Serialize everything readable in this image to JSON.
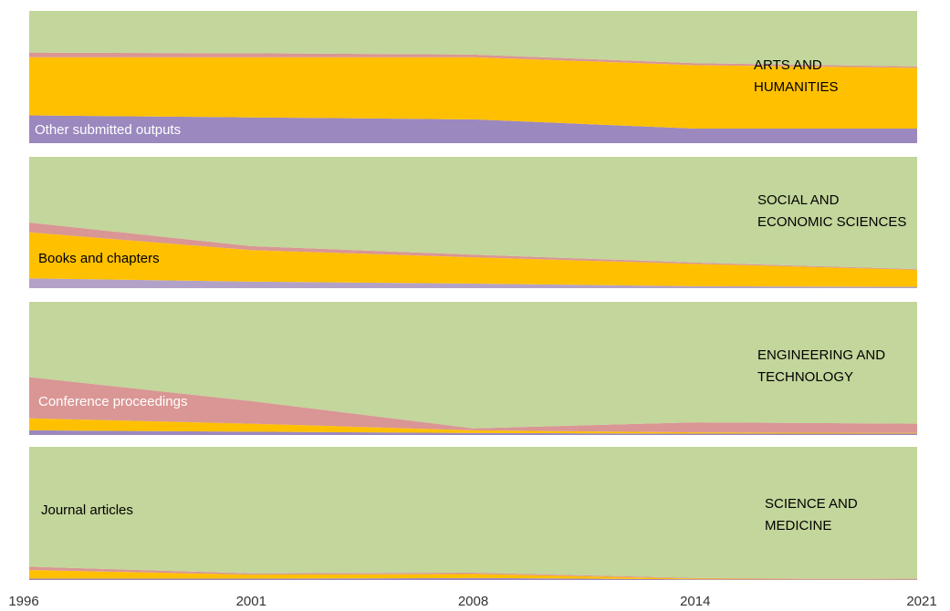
{
  "chart_data": {
    "type": "area",
    "stacked": true,
    "categories": [
      "1996",
      "2001",
      "2008",
      "2014",
      "2021"
    ],
    "panels": [
      {
        "title_lines": [
          "ARTS AND",
          "HUMANITIES"
        ],
        "series": [
          {
            "name": "Other submitted outputs",
            "color": "#9b88bf",
            "values": [
              21,
              19.5,
              18,
              11,
              11
            ]
          },
          {
            "color": "#ffc000",
            "values": [
              44,
              45.5,
              47,
              48,
              46
            ]
          },
          {
            "color": "#d99694",
            "values": [
              3.5,
              3,
              2,
              1.5,
              1
            ]
          },
          {
            "color": "#c3d69b",
            "values": [
              31.5,
              32,
              33,
              39.5,
              42
            ]
          }
        ]
      },
      {
        "title_lines": [
          "SOCIAL AND",
          "ECONOMIC SCIENCES"
        ],
        "series": [
          {
            "color": "#b3a2c7",
            "values": [
              7.5,
              5,
              3.5,
              1.5,
              1
            ]
          },
          {
            "name": "Books and chapters",
            "color": "#ffc000",
            "values": [
              35,
              24,
              20,
              17,
              13
            ]
          },
          {
            "color": "#d99694",
            "values": [
              7.5,
              3,
              2,
              1,
              0.5
            ]
          },
          {
            "color": "#c3d69b",
            "values": [
              50,
              68,
              74.5,
              80.5,
              85.5
            ]
          }
        ]
      },
      {
        "title_lines": [
          "ENGINEERING AND",
          "TECHNOLOGY"
        ],
        "series": [
          {
            "color": "#9b88bf",
            "values": [
              3.5,
              2.5,
              1.5,
              1,
              1
            ]
          },
          {
            "color": "#ffc000",
            "values": [
              9,
              6,
              2,
              1,
              0.5
            ]
          },
          {
            "name": "Conference proceedings",
            "color": "#d99694",
            "values": [
              31,
              17,
              1.5,
              7.5,
              7
            ]
          },
          {
            "color": "#c3d69b",
            "values": [
              56.5,
              74.5,
              95,
              90.5,
              91.5
            ]
          }
        ]
      },
      {
        "title_lines": [
          "SCIENCE AND",
          "MEDICINE"
        ],
        "series": [
          {
            "color": "#9b88bf",
            "values": [
              1,
              1,
              1.5,
              0.5,
              0.5
            ]
          },
          {
            "color": "#ffc000",
            "values": [
              6.5,
              3,
              3,
              0.5,
              0.3
            ]
          },
          {
            "color": "#d99694",
            "values": [
              2.5,
              1,
              1,
              0.5,
              0.2
            ]
          },
          {
            "name": "Journal articles",
            "color": "#c3d69b",
            "values": [
              90,
              95,
              94.5,
              98.5,
              99
            ]
          }
        ]
      }
    ]
  }
}
